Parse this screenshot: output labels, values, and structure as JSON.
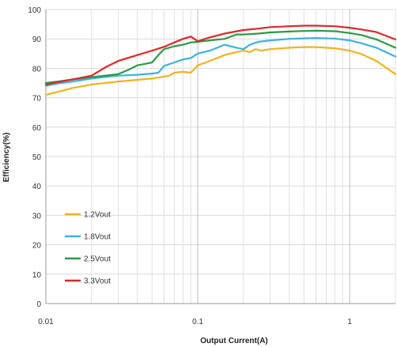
{
  "chart_data": {
    "type": "line",
    "x_scale": "log",
    "xlim": [
      0.01,
      2
    ],
    "ylim": [
      0,
      100
    ],
    "xlabel": "Output Current(A)",
    "ylabel": "Efficiency(%)",
    "x_ticks": [
      "0.01",
      "0.1",
      "1"
    ],
    "y_ticks": [
      "0",
      "10",
      "20",
      "30",
      "40",
      "50",
      "60",
      "70",
      "80",
      "90",
      "100"
    ],
    "grid": true,
    "legend_position": "lower-left",
    "series": [
      {
        "name": "1.2Vout",
        "color": "#f2b21e",
        "x": [
          0.01,
          0.012,
          0.015,
          0.02,
          0.03,
          0.05,
          0.065,
          0.07,
          0.08,
          0.09,
          0.1,
          0.12,
          0.15,
          0.18,
          0.2,
          0.22,
          0.24,
          0.26,
          0.3,
          0.4,
          0.5,
          0.6,
          0.7,
          0.8,
          1.0,
          1.2,
          1.5,
          2.0
        ],
        "values": [
          71,
          72,
          73.3,
          74.5,
          75.5,
          76.5,
          77.5,
          78.5,
          78.8,
          78.5,
          81,
          82.5,
          84.5,
          85.5,
          86,
          85.5,
          86.5,
          86,
          86.5,
          87,
          87.2,
          87.2,
          87,
          86.8,
          86,
          84.8,
          82.5,
          78
        ]
      },
      {
        "name": "1.8Vout",
        "color": "#3db2e0",
        "x": [
          0.01,
          0.012,
          0.015,
          0.02,
          0.03,
          0.04,
          0.05,
          0.055,
          0.06,
          0.07,
          0.08,
          0.09,
          0.1,
          0.12,
          0.15,
          0.18,
          0.2,
          0.22,
          0.25,
          0.3,
          0.4,
          0.5,
          0.6,
          0.8,
          1.0,
          1.2,
          1.5,
          2.0
        ],
        "values": [
          74,
          74.8,
          75.5,
          76.5,
          77.5,
          77.8,
          78.2,
          78.5,
          80.8,
          82,
          83,
          83.5,
          85,
          86,
          88,
          87,
          86.5,
          88,
          89,
          89.5,
          90,
          90.2,
          90.3,
          90.1,
          89.5,
          88.5,
          87,
          84
        ]
      },
      {
        "name": "2.5Vout",
        "color": "#2a9a47",
        "x": [
          0.01,
          0.012,
          0.015,
          0.02,
          0.03,
          0.035,
          0.04,
          0.045,
          0.05,
          0.055,
          0.06,
          0.07,
          0.08,
          0.09,
          0.1,
          0.12,
          0.15,
          0.18,
          0.2,
          0.25,
          0.3,
          0.4,
          0.5,
          0.6,
          0.8,
          1.0,
          1.2,
          1.5,
          2.0
        ],
        "values": [
          75,
          75.5,
          76.2,
          77,
          78,
          79.5,
          81,
          81.5,
          82,
          84.5,
          86.5,
          87.5,
          88,
          88.8,
          89,
          89.5,
          90,
          91.5,
          91.5,
          91.8,
          92.2,
          92.5,
          92.7,
          92.8,
          92.6,
          92,
          91.3,
          89.8,
          87
        ]
      },
      {
        "name": "3.3Vout",
        "color": "#e0272c",
        "x": [
          0.01,
          0.012,
          0.015,
          0.02,
          0.025,
          0.03,
          0.04,
          0.05,
          0.06,
          0.07,
          0.08,
          0.09,
          0.1,
          0.12,
          0.15,
          0.2,
          0.25,
          0.3,
          0.4,
          0.5,
          0.6,
          0.8,
          1.0,
          1.2,
          1.5,
          2.0
        ],
        "values": [
          74.5,
          75.3,
          76.2,
          77.5,
          80.5,
          82.5,
          84.5,
          86,
          87.3,
          88.8,
          90,
          90.8,
          89.2,
          90.5,
          91.8,
          93,
          93.5,
          94,
          94.3,
          94.5,
          94.5,
          94.3,
          93.8,
          93.2,
          92.3,
          89.8
        ]
      }
    ]
  }
}
